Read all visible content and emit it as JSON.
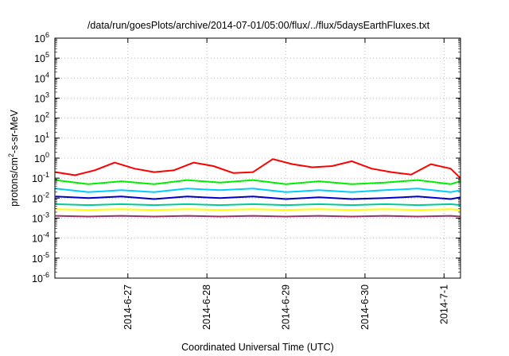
{
  "chart_data": {
    "type": "line",
    "title": "/data/run/goesPlots/archive/2014-07-01/05:00/flux/../flux/5daysEarthFluxes.txt",
    "xlabel": "Coordinated Universal Time (UTC)",
    "ylabel": "protons/cm2-s-sr-MeV",
    "y_scale": "log",
    "ylim": [
      1e-06,
      1000000.0
    ],
    "xlim": [
      "2014-06-26 01:50",
      "2014-07-01 05:00"
    ],
    "grid": true,
    "legend": "none",
    "y_tick_labels": [
      {
        "value": 1e-06,
        "base": "10",
        "exp": "-6"
      },
      {
        "value": 1e-05,
        "base": "10",
        "exp": "-5"
      },
      {
        "value": 0.0001,
        "base": "10",
        "exp": "-4"
      },
      {
        "value": 0.001,
        "base": "10",
        "exp": "-3"
      },
      {
        "value": 0.01,
        "base": "10",
        "exp": "-2"
      },
      {
        "value": 0.1,
        "base": "10",
        "exp": "-1"
      },
      {
        "value": 1.0,
        "base": "10",
        "exp": "0"
      },
      {
        "value": 10.0,
        "base": "10",
        "exp": "1"
      },
      {
        "value": 100.0,
        "base": "10",
        "exp": "2"
      },
      {
        "value": 1000.0,
        "base": "10",
        "exp": "3"
      },
      {
        "value": 10000.0,
        "base": "10",
        "exp": "4"
      },
      {
        "value": 100000.0,
        "base": "10",
        "exp": "5"
      },
      {
        "value": 1000000.0,
        "base": "10",
        "exp": "6"
      }
    ],
    "x_tick_labels": [
      {
        "value": "2014-06-27 00:00",
        "label": "2014-6-27"
      },
      {
        "value": "2014-06-28 00:00",
        "label": "2014-6-28"
      },
      {
        "value": "2014-06-29 00:00",
        "label": "2014-6-29"
      },
      {
        "value": "2014-06-30 00:00",
        "label": "2014-6-30"
      },
      {
        "value": "2014-07-01 00:00",
        "label": "2014-7-1"
      }
    ],
    "series": [
      {
        "color": "#ff0000",
        "x": [
          "2014-06-26 02:00",
          "2014-06-26 08:00",
          "2014-06-26 14:00",
          "2014-06-26 20:00",
          "2014-06-27 02:00",
          "2014-06-27 08:00",
          "2014-06-27 14:00",
          "2014-06-27 20:00",
          "2014-06-28 02:00",
          "2014-06-28 08:00",
          "2014-06-28 14:00",
          "2014-06-28 20:00",
          "2014-06-29 02:00",
          "2014-06-29 08:00",
          "2014-06-29 14:00",
          "2014-06-29 20:00",
          "2014-06-30 02:00",
          "2014-06-30 08:00",
          "2014-06-30 14:00",
          "2014-06-30 20:00",
          "2014-07-01 02:00",
          "2014-07-01 05:00"
        ],
        "values": [
          0.2,
          0.14,
          0.25,
          0.6,
          0.3,
          0.2,
          0.25,
          0.6,
          0.4,
          0.18,
          0.2,
          0.9,
          0.5,
          0.35,
          0.4,
          0.7,
          0.3,
          0.2,
          0.15,
          0.5,
          0.3,
          0.1
        ]
      },
      {
        "color": "#00ee00",
        "x": [
          "2014-06-26 02:00",
          "2014-06-26 12:00",
          "2014-06-26 22:00",
          "2014-06-27 08:00",
          "2014-06-27 18:00",
          "2014-06-28 04:00",
          "2014-06-28 14:00",
          "2014-06-29 00:00",
          "2014-06-29 10:00",
          "2014-06-29 20:00",
          "2014-06-30 06:00",
          "2014-06-30 16:00",
          "2014-07-01 02:00",
          "2014-07-01 05:00"
        ],
        "values": [
          0.08,
          0.05,
          0.07,
          0.05,
          0.08,
          0.06,
          0.08,
          0.05,
          0.07,
          0.05,
          0.06,
          0.08,
          0.05,
          0.07
        ]
      },
      {
        "color": "#00ccff",
        "x": [
          "2014-06-26 02:00",
          "2014-06-26 12:00",
          "2014-06-26 22:00",
          "2014-06-27 08:00",
          "2014-06-27 18:00",
          "2014-06-28 04:00",
          "2014-06-28 14:00",
          "2014-06-29 00:00",
          "2014-06-29 10:00",
          "2014-06-29 20:00",
          "2014-06-30 06:00",
          "2014-06-30 16:00",
          "2014-07-01 02:00",
          "2014-07-01 05:00"
        ],
        "values": [
          0.03,
          0.02,
          0.025,
          0.02,
          0.03,
          0.025,
          0.03,
          0.02,
          0.025,
          0.02,
          0.025,
          0.03,
          0.02,
          0.025
        ]
      },
      {
        "color": "#0000cc",
        "x": [
          "2014-06-26 02:00",
          "2014-06-26 12:00",
          "2014-06-26 22:00",
          "2014-06-27 08:00",
          "2014-06-27 18:00",
          "2014-06-28 04:00",
          "2014-06-28 14:00",
          "2014-06-29 00:00",
          "2014-06-29 10:00",
          "2014-06-29 20:00",
          "2014-06-30 06:00",
          "2014-06-30 16:00",
          "2014-07-01 02:00",
          "2014-07-01 05:00"
        ],
        "values": [
          0.012,
          0.01,
          0.012,
          0.009,
          0.012,
          0.01,
          0.012,
          0.009,
          0.011,
          0.009,
          0.01,
          0.012,
          0.009,
          0.011
        ]
      },
      {
        "color": "#00cc99",
        "x": [
          "2014-06-26 02:00",
          "2014-06-26 12:00",
          "2014-06-26 22:00",
          "2014-06-27 08:00",
          "2014-06-27 18:00",
          "2014-06-28 04:00",
          "2014-06-28 14:00",
          "2014-06-29 00:00",
          "2014-06-29 10:00",
          "2014-06-29 20:00",
          "2014-06-30 06:00",
          "2014-06-30 16:00",
          "2014-07-01 02:00",
          "2014-07-01 05:00"
        ],
        "values": [
          0.005,
          0.0045,
          0.005,
          0.0045,
          0.005,
          0.0045,
          0.005,
          0.0045,
          0.005,
          0.0045,
          0.005,
          0.0045,
          0.005,
          0.0045
        ]
      },
      {
        "color": "#ffff00",
        "x": [
          "2014-06-26 02:00",
          "2014-06-26 12:00",
          "2014-06-26 22:00",
          "2014-06-27 08:00",
          "2014-06-27 18:00",
          "2014-06-28 04:00",
          "2014-06-28 14:00",
          "2014-06-29 00:00",
          "2014-06-29 10:00",
          "2014-06-29 20:00",
          "2014-06-30 06:00",
          "2014-06-30 16:00",
          "2014-07-01 02:00",
          "2014-07-01 05:00"
        ],
        "values": [
          0.0028,
          0.0026,
          0.0028,
          0.0026,
          0.0028,
          0.0026,
          0.0028,
          0.0026,
          0.0028,
          0.0026,
          0.0028,
          0.0026,
          0.0028,
          0.0026
        ]
      },
      {
        "color": "#993366",
        "x": [
          "2014-06-26 02:00",
          "2014-06-26 12:00",
          "2014-06-26 22:00",
          "2014-06-27 08:00",
          "2014-06-27 18:00",
          "2014-06-28 04:00",
          "2014-06-28 14:00",
          "2014-06-29 00:00",
          "2014-06-29 10:00",
          "2014-06-29 20:00",
          "2014-06-30 06:00",
          "2014-06-30 16:00",
          "2014-07-01 02:00",
          "2014-07-01 05:00"
        ],
        "values": [
          0.0013,
          0.0012,
          0.0013,
          0.0012,
          0.0013,
          0.0012,
          0.0013,
          0.0012,
          0.0013,
          0.0012,
          0.0013,
          0.0012,
          0.0013,
          0.0012
        ]
      }
    ]
  }
}
